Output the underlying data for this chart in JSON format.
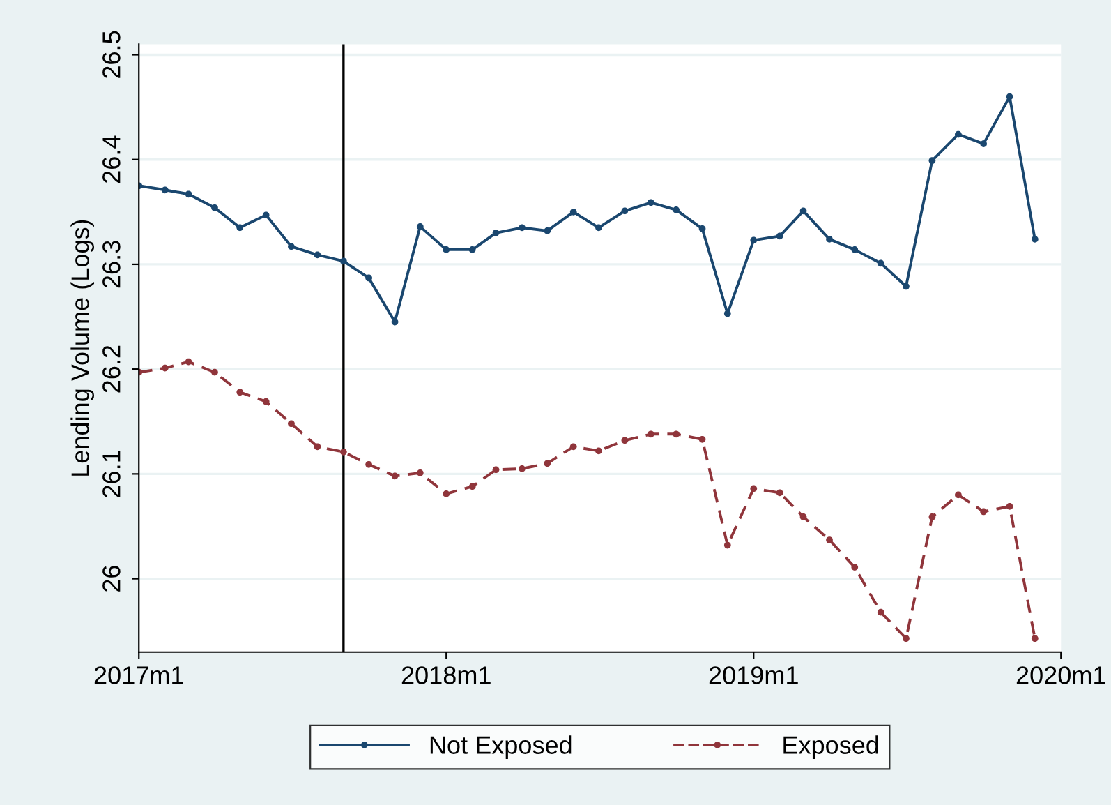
{
  "chart_data": {
    "type": "line",
    "ylabel": "Lending Volume (Logs)",
    "x": [
      "2017-01",
      "2017-02",
      "2017-03",
      "2017-04",
      "2017-05",
      "2017-06",
      "2017-07",
      "2017-08",
      "2017-09",
      "2017-10",
      "2017-11",
      "2017-12",
      "2018-01",
      "2018-02",
      "2018-03",
      "2018-04",
      "2018-05",
      "2018-06",
      "2018-07",
      "2018-08",
      "2018-09",
      "2018-10",
      "2018-11",
      "2018-12",
      "2019-01",
      "2019-02",
      "2019-03",
      "2019-04",
      "2019-05",
      "2019-06",
      "2019-07",
      "2019-08",
      "2019-09",
      "2019-10",
      "2019-11",
      "2019-12"
    ],
    "series": [
      {
        "name": "Not Exposed",
        "color": "#1a476f",
        "line_style": "solid",
        "values": [
          26.375,
          26.371,
          26.367,
          26.354,
          26.335,
          26.347,
          26.317,
          26.309,
          26.303,
          26.287,
          26.245,
          26.336,
          26.314,
          26.314,
          26.33,
          26.335,
          26.332,
          26.35,
          26.335,
          26.351,
          26.359,
          26.352,
          26.334,
          26.253,
          26.323,
          26.327,
          26.351,
          26.324,
          26.314,
          26.301,
          26.279,
          26.399,
          26.424,
          26.415,
          26.46,
          26.324
        ]
      },
      {
        "name": "Exposed",
        "color": "#90353b",
        "line_style": "dashed",
        "values": [
          26.197,
          26.201,
          26.207,
          26.197,
          26.178,
          26.169,
          26.148,
          26.126,
          26.121,
          26.109,
          26.098,
          26.101,
          26.081,
          26.088,
          26.104,
          26.105,
          26.11,
          26.126,
          26.122,
          26.132,
          26.138,
          26.138,
          26.133,
          26.032,
          26.086,
          26.082,
          26.059,
          26.037,
          26.011,
          25.968,
          25.943,
          26.059,
          26.08,
          26.064,
          26.069,
          25.943
        ]
      }
    ],
    "xlim": [
      "2017-01",
      "2020-01"
    ],
    "xticks": [
      {
        "value": "2017-01",
        "label": "2017m1"
      },
      {
        "value": "2018-01",
        "label": "2018m1"
      },
      {
        "value": "2019-01",
        "label": "2019m1"
      },
      {
        "value": "2020-01",
        "label": "2020m1"
      }
    ],
    "ylim": [
      25.93,
      26.51
    ],
    "yticks": [
      26,
      26.1,
      26.2,
      26.3,
      26.4,
      26.5
    ],
    "ref_lines": [
      {
        "axis": "x",
        "value": "2017-09",
        "color": "#000000"
      }
    ],
    "grid": "y",
    "legend": "bottom",
    "marker": "circle"
  }
}
